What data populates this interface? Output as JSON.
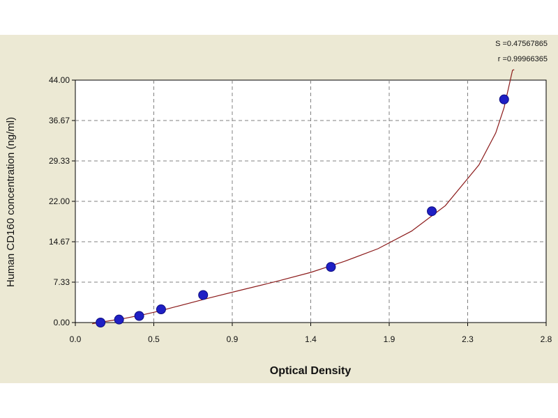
{
  "chart_data": {
    "type": "scatter",
    "xlabel": "Optical Density",
    "ylabel": "Human CD160 concentration (ng/ml)",
    "xlim": [
      0.0,
      2.8
    ],
    "ylim": [
      0.0,
      44.0
    ],
    "x_ticks": [
      "0.0",
      "0.5",
      "0.9",
      "1.4",
      "1.9",
      "2.3",
      "2.8"
    ],
    "y_ticks": [
      "0.00",
      "7.33",
      "14.67",
      "22.00",
      "29.33",
      "36.67",
      "44.00"
    ],
    "grid": true,
    "annotations": {
      "s": "S =0.47567865",
      "r": "r =0.99966365"
    },
    "series": [
      {
        "marker": "circle",
        "x": [
          0.15,
          0.26,
          0.38,
          0.51,
          0.76,
          1.52,
          2.12,
          2.55
        ],
        "y": [
          0.0,
          0.55,
          1.2,
          2.4,
          5.0,
          10.1,
          20.2,
          40.5
        ]
      }
    ],
    "fit_curve": [
      [
        0.1,
        -0.2
      ],
      [
        0.2,
        0.3
      ],
      [
        0.3,
        0.8
      ],
      [
        0.4,
        1.4
      ],
      [
        0.5,
        2.1
      ],
      [
        0.6,
        2.9
      ],
      [
        0.8,
        4.5
      ],
      [
        1.0,
        6.0
      ],
      [
        1.2,
        7.5
      ],
      [
        1.4,
        9.1
      ],
      [
        1.6,
        11.1
      ],
      [
        1.8,
        13.4
      ],
      [
        2.0,
        16.6
      ],
      [
        2.2,
        21.2
      ],
      [
        2.4,
        28.6
      ],
      [
        2.5,
        34.4
      ],
      [
        2.55,
        39.0
      ],
      [
        2.6,
        45.8
      ],
      [
        2.61,
        47.7
      ]
    ],
    "colors": {
      "point": "#1f1fc4",
      "curve": "#8b1a1a",
      "grid": "#808080",
      "background": "#ece9d4",
      "plot_area": "#ffffff"
    }
  }
}
